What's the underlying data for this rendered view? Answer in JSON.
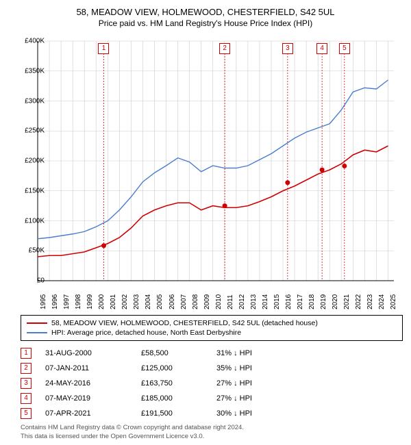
{
  "title": "58, MEADOW VIEW, HOLMEWOOD, CHESTERFIELD, S42 5UL",
  "subtitle": "Price paid vs. HM Land Registry's House Price Index (HPI)",
  "chart": {
    "type": "line",
    "background_color": "#ffffff",
    "grid_color": "#cccccc",
    "axis_color": "#000000",
    "text_color": "#000000",
    "title_fontsize": 13,
    "label_fontsize": 10,
    "x_years": [
      1995,
      1996,
      1997,
      1998,
      1999,
      2000,
      2001,
      2002,
      2003,
      2004,
      2005,
      2006,
      2007,
      2008,
      2009,
      2010,
      2011,
      2012,
      2013,
      2014,
      2015,
      2016,
      2017,
      2018,
      2019,
      2020,
      2021,
      2022,
      2023,
      2024,
      2025
    ],
    "xlim": [
      1995,
      2025.5
    ],
    "ylim": [
      0,
      400000
    ],
    "ytick_step": 50000,
    "yticks": [
      "£0",
      "£50K",
      "£100K",
      "£150K",
      "£200K",
      "£250K",
      "£300K",
      "£350K",
      "£400K"
    ],
    "series": [
      {
        "name": "property",
        "color": "#d00000",
        "width": 1.6,
        "points": [
          [
            1995,
            40000
          ],
          [
            1996,
            42000
          ],
          [
            1997,
            42000
          ],
          [
            1998,
            45000
          ],
          [
            1999,
            48000
          ],
          [
            2000,
            55000
          ],
          [
            2001,
            62000
          ],
          [
            2002,
            72000
          ],
          [
            2003,
            88000
          ],
          [
            2004,
            108000
          ],
          [
            2005,
            118000
          ],
          [
            2006,
            125000
          ],
          [
            2007,
            130000
          ],
          [
            2008,
            130000
          ],
          [
            2009,
            118000
          ],
          [
            2010,
            125000
          ],
          [
            2011,
            122000
          ],
          [
            2012,
            122000
          ],
          [
            2013,
            125000
          ],
          [
            2014,
            132000
          ],
          [
            2015,
            140000
          ],
          [
            2016,
            150000
          ],
          [
            2017,
            158000
          ],
          [
            2018,
            168000
          ],
          [
            2019,
            178000
          ],
          [
            2020,
            185000
          ],
          [
            2021,
            195000
          ],
          [
            2022,
            210000
          ],
          [
            2023,
            218000
          ],
          [
            2024,
            215000
          ],
          [
            2025,
            225000
          ]
        ]
      },
      {
        "name": "hpi",
        "color": "#4a7ecc",
        "width": 1.4,
        "points": [
          [
            1995,
            70000
          ],
          [
            1996,
            72000
          ],
          [
            1997,
            75000
          ],
          [
            1998,
            78000
          ],
          [
            1999,
            82000
          ],
          [
            2000,
            90000
          ],
          [
            2001,
            100000
          ],
          [
            2002,
            118000
          ],
          [
            2003,
            140000
          ],
          [
            2004,
            165000
          ],
          [
            2005,
            180000
          ],
          [
            2006,
            192000
          ],
          [
            2007,
            205000
          ],
          [
            2008,
            198000
          ],
          [
            2009,
            182000
          ],
          [
            2010,
            192000
          ],
          [
            2011,
            188000
          ],
          [
            2012,
            188000
          ],
          [
            2013,
            192000
          ],
          [
            2014,
            202000
          ],
          [
            2015,
            212000
          ],
          [
            2016,
            225000
          ],
          [
            2017,
            238000
          ],
          [
            2018,
            248000
          ],
          [
            2019,
            255000
          ],
          [
            2020,
            262000
          ],
          [
            2021,
            285000
          ],
          [
            2022,
            315000
          ],
          [
            2023,
            322000
          ],
          [
            2024,
            320000
          ],
          [
            2025,
            335000
          ]
        ]
      }
    ],
    "sale_markers": [
      {
        "n": "1",
        "x": 2000.66,
        "y": 58500
      },
      {
        "n": "2",
        "x": 2011.02,
        "y": 125000
      },
      {
        "n": "3",
        "x": 2016.4,
        "y": 163750
      },
      {
        "n": "4",
        "x": 2019.35,
        "y": 185000
      },
      {
        "n": "5",
        "x": 2021.27,
        "y": 191500
      }
    ],
    "marker_color": "#d00000",
    "marker_radius": 3.5,
    "vline_dash": "2,2",
    "marker_box_top_offset": 20
  },
  "legend": {
    "items": [
      {
        "color": "#d00000",
        "label": "58, MEADOW VIEW, HOLMEWOOD, CHESTERFIELD, S42 5UL (detached house)"
      },
      {
        "color": "#4a7ecc",
        "label": "HPI: Average price, detached house, North East Derbyshire"
      }
    ]
  },
  "sales_table": [
    {
      "n": "1",
      "date": "31-AUG-2000",
      "price": "£58,500",
      "diff": "31% ↓ HPI"
    },
    {
      "n": "2",
      "date": "07-JAN-2011",
      "price": "£125,000",
      "diff": "35% ↓ HPI"
    },
    {
      "n": "3",
      "date": "24-MAY-2016",
      "price": "£163,750",
      "diff": "27% ↓ HPI"
    },
    {
      "n": "4",
      "date": "07-MAY-2019",
      "price": "£185,000",
      "diff": "27% ↓ HPI"
    },
    {
      "n": "5",
      "date": "07-APR-2021",
      "price": "£191,500",
      "diff": "30% ↓ HPI"
    }
  ],
  "footer_line1": "Contains HM Land Registry data © Crown copyright and database right 2024.",
  "footer_line2": "This data is licensed under the Open Government Licence v3.0."
}
